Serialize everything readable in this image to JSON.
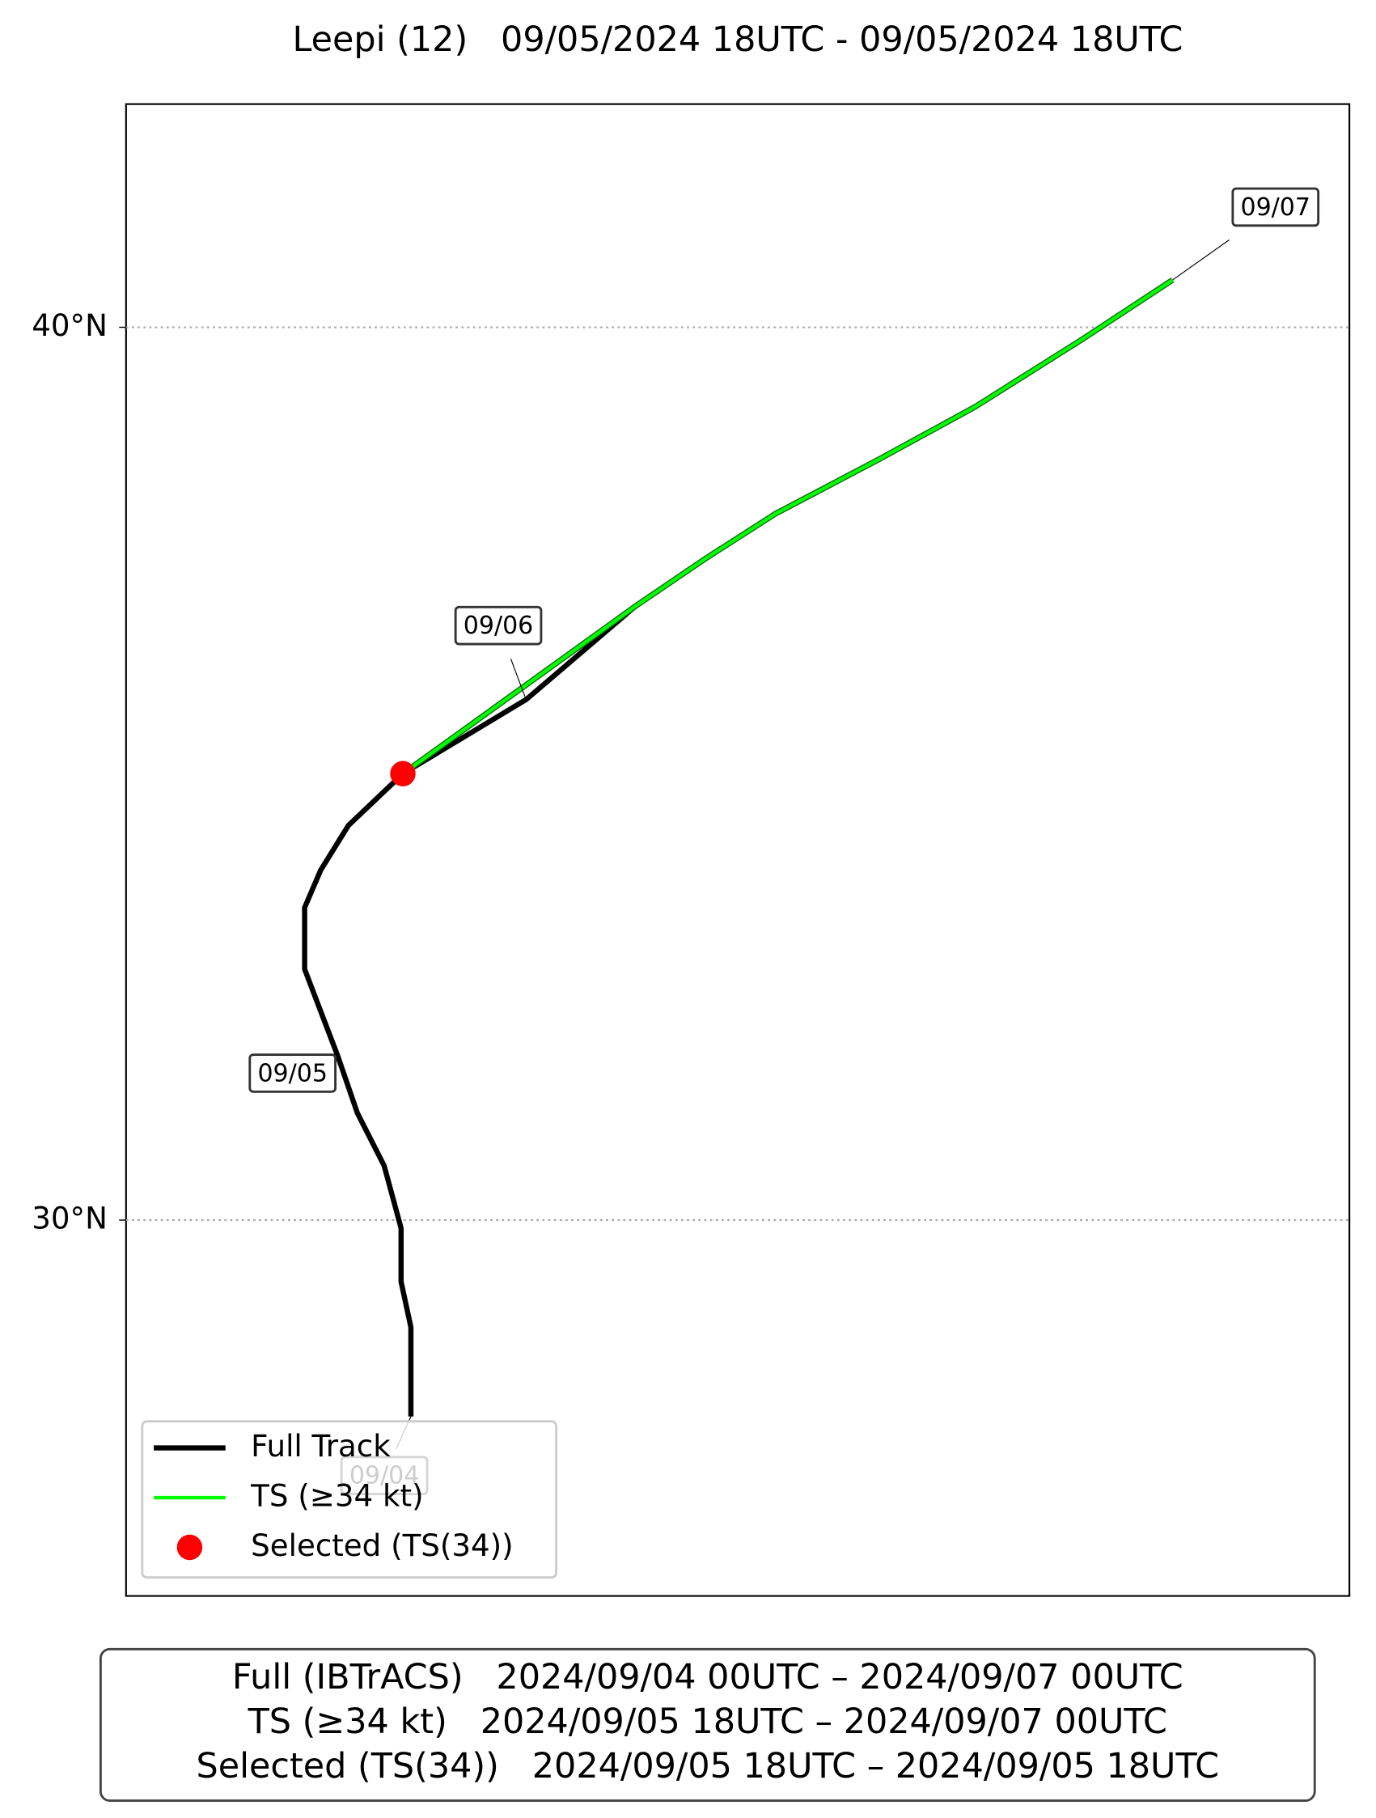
{
  "chart_data": {
    "type": "line",
    "title": "Leepi (12)   09/05/2024 18UTC - 09/05/2024 18UTC",
    "xlim": [
      137.0,
      150.7
    ],
    "ylim": [
      25.79,
      42.5
    ],
    "yticks": [
      {
        "value": 30,
        "label": "30°N"
      },
      {
        "value": 40,
        "label": "40°N"
      }
    ],
    "grid": true,
    "legend": "lower left",
    "series": [
      {
        "name": "Full Track",
        "color": "#000000",
        "x": [
          140.19,
          140.19,
          140.08,
          140.08,
          139.89,
          139.59,
          139.37,
          139.0,
          139.0,
          139.18,
          139.49,
          140.1,
          141.48,
          142.71,
          143.49,
          144.27,
          145.43,
          146.51,
          147.7,
          148.72
        ],
        "y": [
          27.8,
          28.8,
          29.31,
          29.91,
          30.61,
          31.2,
          31.84,
          32.81,
          33.5,
          33.92,
          34.42,
          35.0,
          35.83,
          36.88,
          37.41,
          37.91,
          38.52,
          39.11,
          39.86,
          40.53
        ]
      },
      {
        "name": "TS (≥34 kt)",
        "color": "#00ff00",
        "x": [
          140.1,
          142.71,
          143.49,
          144.27,
          145.43,
          146.51,
          147.7,
          148.72
        ],
        "y": [
          35.0,
          36.88,
          37.41,
          37.91,
          38.52,
          39.11,
          39.86,
          40.53
        ]
      },
      {
        "name": "Selected (TS(34))",
        "color": "#ff0000",
        "marker": "dot",
        "x": [
          140.1
        ],
        "y": [
          35.0
        ]
      }
    ],
    "annotations": [
      "09/04",
      "09/05",
      "09/06",
      "09/07"
    ],
    "summary": [
      "Full (IBTrACS)   2024/09/04 00UTC – 2024/09/07 00UTC",
      "TS (≥34 kt)   2024/09/05 18UTC – 2024/09/07 00UTC",
      "Selected (TS(34))   2024/09/05 18UTC – 2024/09/05 18UTC"
    ]
  }
}
